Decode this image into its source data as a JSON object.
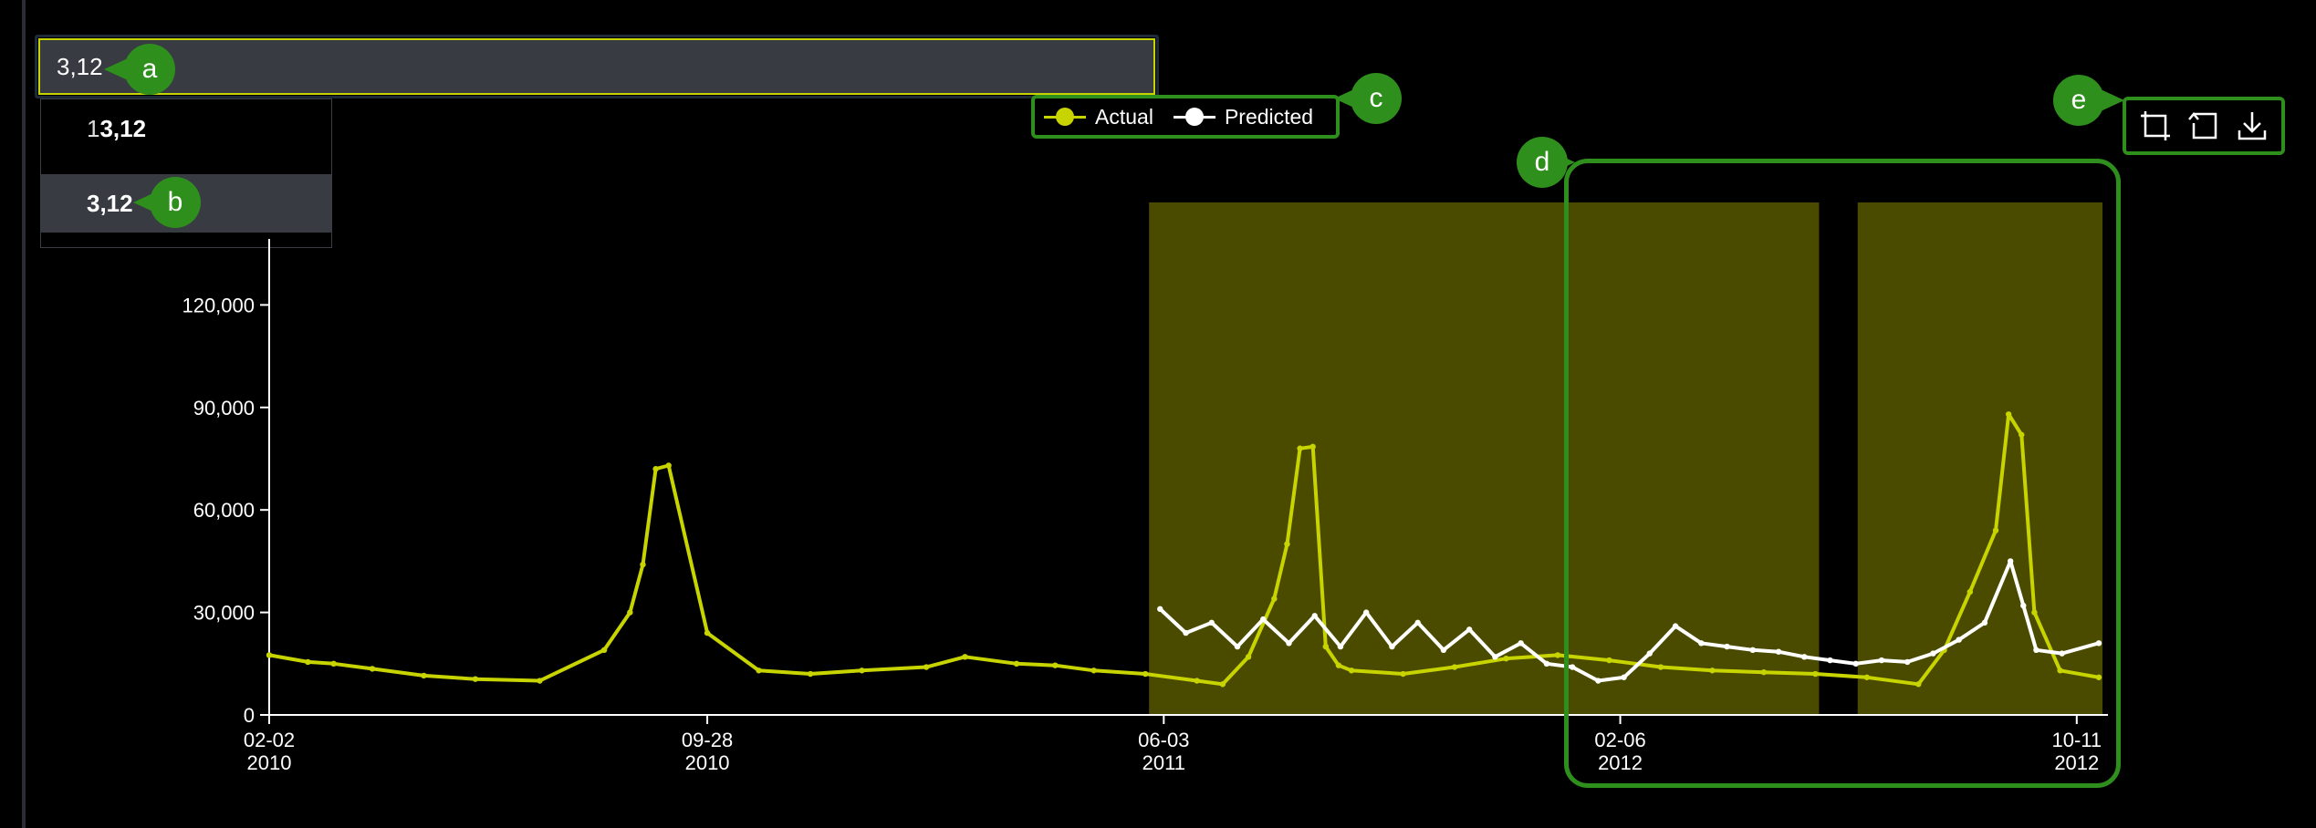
{
  "search": {
    "value": "3,12"
  },
  "suggestions": [
    {
      "prefix": "1",
      "match": "3,12"
    },
    {
      "prefix": "",
      "match": "3,12"
    }
  ],
  "annotations": {
    "a": "a",
    "b": "b",
    "c": "c",
    "d": "d",
    "e": "e"
  },
  "legend": [
    {
      "label": "Actual",
      "color": "#c8d400"
    },
    {
      "label": "Predicted",
      "color": "#ffffff"
    }
  ],
  "toolbar": [
    {
      "icon": "crop-icon"
    },
    {
      "icon": "reset-zoom-icon"
    },
    {
      "icon": "download-icon"
    }
  ],
  "colors": {
    "actual": "#c8d400",
    "predicted": "#ffffff",
    "highlight": "#4b4b00",
    "callout": "#2f8f1d",
    "input_background": "#383b42"
  },
  "chart_data": {
    "type": "line",
    "title": "",
    "xlabel": "",
    "ylabel": "",
    "ylim": [
      0,
      150000
    ],
    "y_ticks": [
      0,
      30000,
      60000,
      90000,
      120000
    ],
    "y_tick_labels": [
      "0",
      "30,000",
      "60,000",
      "90,000",
      "120,000"
    ],
    "xlim": [
      "2010-02-02",
      "2012-10-23"
    ],
    "x_ticks": [
      {
        "date": "2010-02-02",
        "label": "02-02",
        "year": "2010"
      },
      {
        "date": "2010-09-28",
        "label": "09-28",
        "year": "2010"
      },
      {
        "date": "2011-06-03",
        "label": "06-03",
        "year": "2011"
      },
      {
        "date": "2012-02-06",
        "label": "02-06",
        "year": "2012"
      },
      {
        "date": "2012-10-11",
        "label": "10-11",
        "year": "2012"
      }
    ],
    "highlighted_ranges": [
      {
        "start": "2011-05-26",
        "end": "2012-05-24"
      },
      {
        "start": "2012-06-14",
        "end": "2012-10-25"
      }
    ],
    "series": [
      {
        "name": "Actual",
        "color": "#c8d400",
        "x": [
          "2010-02-02",
          "2010-02-23",
          "2010-03-09",
          "2010-03-30",
          "2010-04-27",
          "2010-05-25",
          "2010-06-29",
          "2010-08-03",
          "2010-08-17",
          "2010-08-24",
          "2010-08-31",
          "2010-09-07",
          "2010-09-28",
          "2010-10-26",
          "2010-11-23",
          "2010-12-21",
          "2011-01-25",
          "2011-02-15",
          "2011-03-15",
          "2011-04-05",
          "2011-04-26",
          "2011-05-24",
          "2011-06-21",
          "2011-07-05",
          "2011-07-19",
          "2011-08-02",
          "2011-08-09",
          "2011-08-16",
          "2011-08-23",
          "2011-08-30",
          "2011-09-06",
          "2011-09-13",
          "2011-10-11",
          "2011-11-08",
          "2011-12-06",
          "2012-01-03",
          "2012-01-31",
          "2012-02-28",
          "2012-03-27",
          "2012-04-24",
          "2012-05-22",
          "2012-06-19",
          "2012-07-17",
          "2012-07-31",
          "2012-08-14",
          "2012-08-28",
          "2012-09-04",
          "2012-09-11",
          "2012-09-18",
          "2012-10-02",
          "2012-10-23"
        ],
        "values": [
          17500,
          15500,
          15000,
          13500,
          11500,
          10500,
          10000,
          19000,
          30000,
          44000,
          72000,
          73000,
          24000,
          13000,
          12000,
          13000,
          14000,
          17000,
          15000,
          14500,
          13000,
          12000,
          10000,
          9000,
          17000,
          34000,
          50000,
          78000,
          78500,
          20000,
          14500,
          13000,
          12000,
          14000,
          16500,
          17500,
          16000,
          14000,
          13000,
          12500,
          12000,
          11000,
          9000,
          19000,
          36000,
          54000,
          88000,
          82000,
          30000,
          13000,
          11000
        ]
      },
      {
        "name": "Predicted",
        "color": "#ffffff",
        "x": [
          "2011-06-01",
          "2011-06-15",
          "2011-06-29",
          "2011-07-13",
          "2011-07-27",
          "2011-08-10",
          "2011-08-24",
          "2011-09-07",
          "2011-09-21",
          "2011-10-05",
          "2011-10-19",
          "2011-11-02",
          "2011-11-16",
          "2011-11-30",
          "2011-12-14",
          "2011-12-28",
          "2012-01-11",
          "2012-01-25",
          "2012-02-08",
          "2012-02-22",
          "2012-03-07",
          "2012-03-21",
          "2012-04-04",
          "2012-04-18",
          "2012-05-02",
          "2012-05-16",
          "2012-05-30",
          "2012-06-13",
          "2012-06-27",
          "2012-07-11",
          "2012-07-25",
          "2012-08-08",
          "2012-08-22",
          "2012-09-05",
          "2012-09-12",
          "2012-09-19",
          "2012-10-03",
          "2012-10-23"
        ],
        "values": [
          31000,
          24000,
          27000,
          20000,
          28000,
          21000,
          29000,
          20000,
          30000,
          20000,
          27000,
          19000,
          25000,
          17000,
          21000,
          15000,
          14000,
          10000,
          11000,
          18000,
          26000,
          21000,
          20000,
          19000,
          18500,
          17000,
          16000,
          15000,
          16000,
          15500,
          18000,
          22000,
          27000,
          45000,
          32000,
          19000,
          18000,
          21000
        ]
      }
    ]
  }
}
